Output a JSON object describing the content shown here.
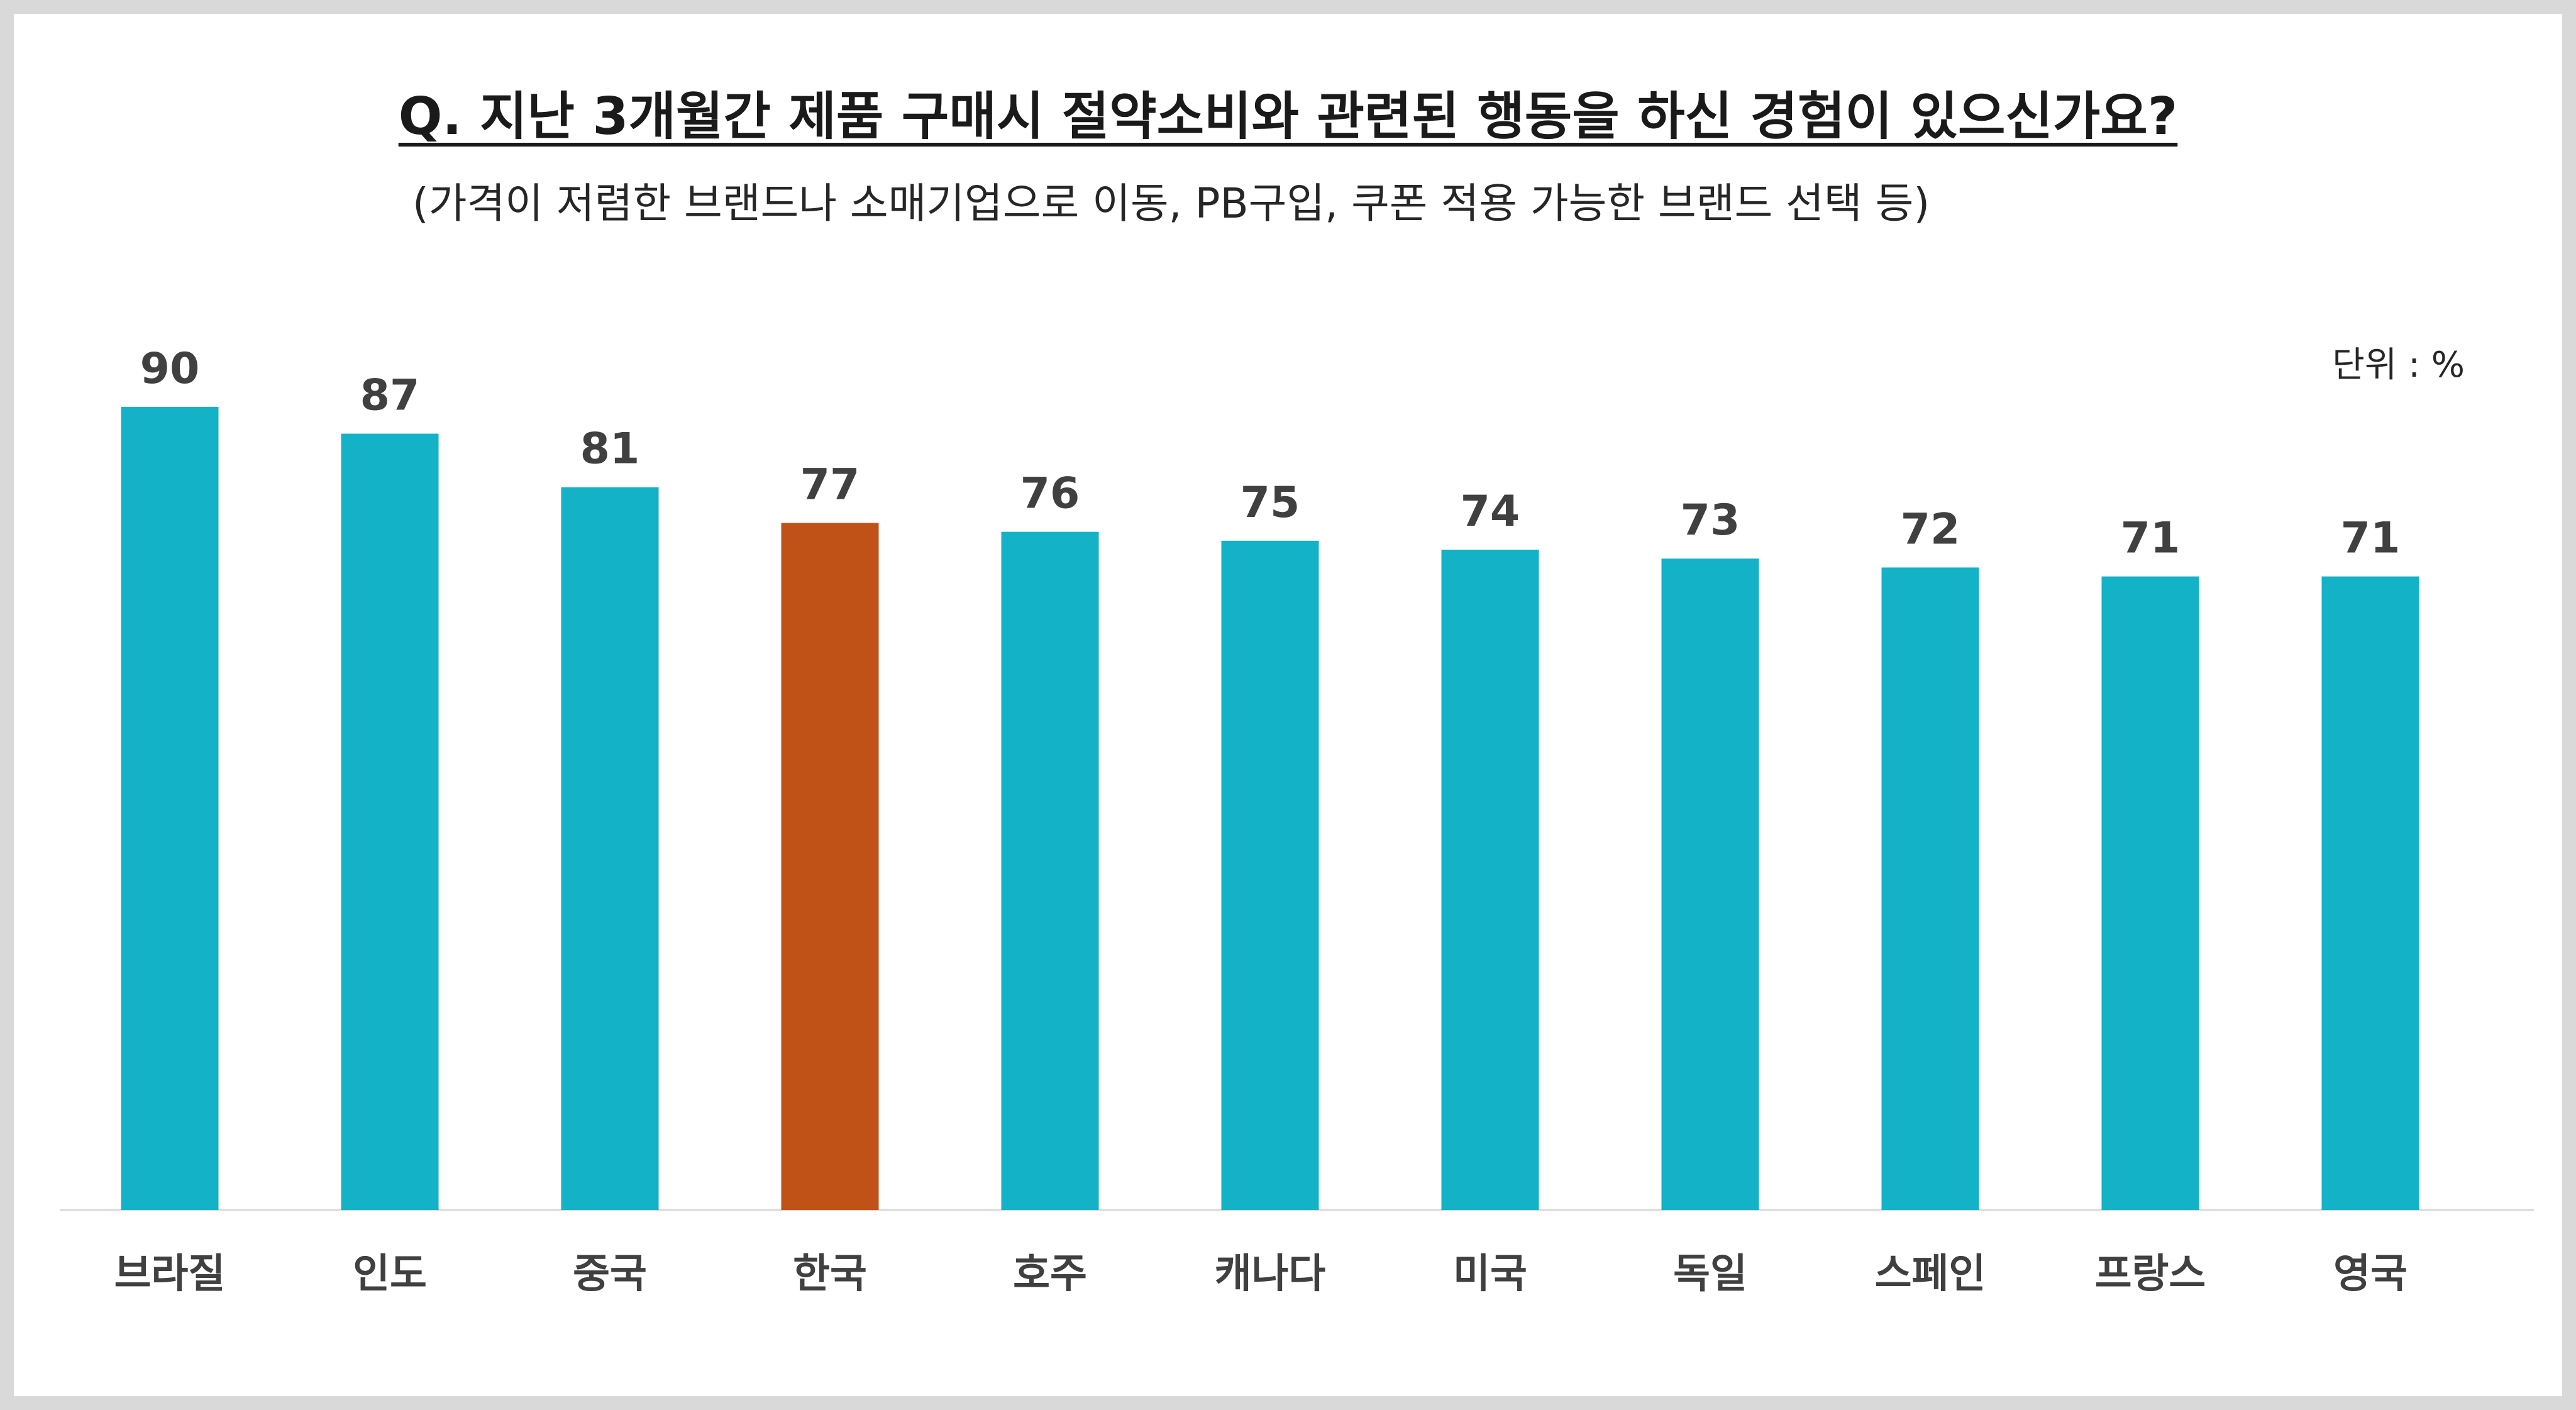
{
  "title": "Q. 지난 3개월간 제품 구매시 절약소비와 관련된 행동을 하신 경험이 있으신가요?",
  "subtitle": "(가격이 저렴한 브랜드나 소매기업으로 이동, PB구입, 쿠폰 적용 가능한 브랜드 선택 등)",
  "unit_label": "단위 : %",
  "colors": {
    "bar": "#13b2c6",
    "highlight": "#c05117",
    "value_text": "#404040",
    "category_text": "#404040",
    "baseline": "#d9d9d9"
  },
  "chart_data": {
    "type": "bar",
    "categories": [
      "브라질",
      "인도",
      "중국",
      "한국",
      "호주",
      "캐나다",
      "미국",
      "독일",
      "스페인",
      "프랑스",
      "영국"
    ],
    "values": [
      90,
      87,
      81,
      77,
      76,
      75,
      74,
      73,
      72,
      71,
      71
    ],
    "highlight_category": "한국",
    "ylim": [
      0,
      100
    ],
    "grid": false,
    "legend": "none",
    "xlabel": "",
    "ylabel": ""
  }
}
